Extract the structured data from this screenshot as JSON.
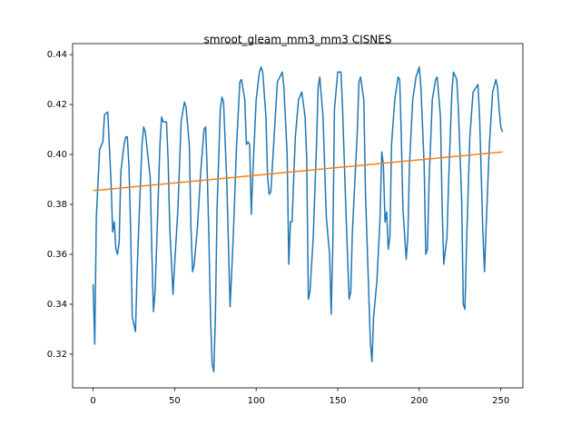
{
  "chart_data": {
    "type": "line",
    "title": "smroot_gleam_mm3_mm3 CISNES",
    "xlim": [
      -12.55,
      263.55
    ],
    "ylim": [
      0.3065,
      0.4444
    ],
    "xticks": [
      0,
      50,
      100,
      150,
      200,
      250
    ],
    "yticks": [
      0.32,
      0.34,
      0.36,
      0.38,
      {
        "value": 0.4,
        "label": "0.40"
      },
      0.42,
      0.44
    ],
    "grid": false,
    "series": [
      {
        "color": "#1f77b4",
        "x": [
          0,
          1,
          2,
          4,
          6,
          7,
          9,
          11,
          12,
          13,
          14,
          15,
          16,
          17,
          19,
          20,
          21,
          22,
          23,
          24,
          26,
          27,
          28,
          30,
          31,
          32,
          35,
          36,
          37,
          38,
          39,
          41,
          42,
          43,
          45,
          46,
          47,
          49,
          50,
          52,
          54,
          56,
          57,
          59,
          60,
          61,
          62,
          64,
          66,
          68,
          69,
          70,
          71,
          72,
          73,
          74,
          75,
          76,
          78,
          79,
          80,
          82,
          84,
          85,
          86,
          88,
          90,
          91,
          93,
          94,
          95,
          96,
          97,
          98,
          100,
          102,
          103,
          104,
          106,
          107,
          108,
          109,
          111,
          113,
          116,
          117,
          119,
          120,
          121,
          122,
          124,
          126,
          128,
          130,
          131,
          132,
          133,
          135,
          137,
          138,
          139,
          141,
          143,
          145,
          146,
          147,
          148,
          150,
          152,
          153,
          155,
          157,
          158,
          159,
          162,
          163,
          164,
          166,
          167,
          169,
          170,
          171,
          172,
          174,
          176,
          177,
          178,
          179,
          180,
          181,
          182,
          183,
          185,
          187,
          188,
          189,
          190,
          192,
          193,
          194,
          196,
          198,
          200,
          201,
          203,
          204,
          205,
          206,
          208,
          210,
          211,
          213,
          214,
          215,
          217,
          218,
          220,
          221,
          223,
          224,
          226,
          227,
          228,
          229,
          231,
          233,
          236,
          237,
          239,
          240,
          241,
          243,
          245,
          247,
          248,
          249,
          250,
          251
        ],
        "values": [
          0.348,
          0.324,
          0.375,
          0.402,
          0.405,
          0.416,
          0.417,
          0.389,
          0.369,
          0.373,
          0.362,
          0.36,
          0.365,
          0.393,
          0.404,
          0.407,
          0.407,
          0.395,
          0.371,
          0.335,
          0.329,
          0.353,
          0.371,
          0.404,
          0.411,
          0.409,
          0.391,
          0.362,
          0.337,
          0.345,
          0.364,
          0.404,
          0.415,
          0.413,
          0.413,
          0.398,
          0.371,
          0.344,
          0.356,
          0.378,
          0.413,
          0.421,
          0.419,
          0.404,
          0.371,
          0.353,
          0.356,
          0.371,
          0.393,
          0.41,
          0.411,
          0.393,
          0.367,
          0.335,
          0.316,
          0.313,
          0.335,
          0.378,
          0.418,
          0.423,
          0.421,
          0.389,
          0.339,
          0.353,
          0.368,
          0.404,
          0.429,
          0.43,
          0.422,
          0.404,
          0.405,
          0.404,
          0.376,
          0.393,
          0.422,
          0.433,
          0.435,
          0.433,
          0.415,
          0.391,
          0.384,
          0.385,
          0.407,
          0.429,
          0.433,
          0.427,
          0.4,
          0.356,
          0.373,
          0.373,
          0.407,
          0.422,
          0.425,
          0.415,
          0.398,
          0.342,
          0.345,
          0.367,
          0.404,
          0.427,
          0.431,
          0.415,
          0.375,
          0.36,
          0.336,
          0.364,
          0.418,
          0.433,
          0.433,
          0.418,
          0.378,
          0.342,
          0.345,
          0.369,
          0.409,
          0.429,
          0.431,
          0.422,
          0.385,
          0.345,
          0.325,
          0.317,
          0.335,
          0.349,
          0.375,
          0.401,
          0.396,
          0.373,
          0.377,
          0.362,
          0.367,
          0.404,
          0.422,
          0.431,
          0.43,
          0.407,
          0.378,
          0.358,
          0.367,
          0.396,
          0.422,
          0.431,
          0.435,
          0.427,
          0.396,
          0.36,
          0.362,
          0.389,
          0.422,
          0.43,
          0.431,
          0.415,
          0.38,
          0.356,
          0.367,
          0.389,
          0.425,
          0.433,
          0.43,
          0.418,
          0.382,
          0.34,
          0.338,
          0.364,
          0.407,
          0.425,
          0.428,
          0.415,
          0.369,
          0.353,
          0.371,
          0.404,
          0.425,
          0.43,
          0.427,
          0.418,
          0.411,
          0.409
        ]
      },
      {
        "color": "#ff7f0e",
        "x": [
          0,
          251
        ],
        "values": [
          0.3855,
          0.401
        ]
      }
    ]
  }
}
